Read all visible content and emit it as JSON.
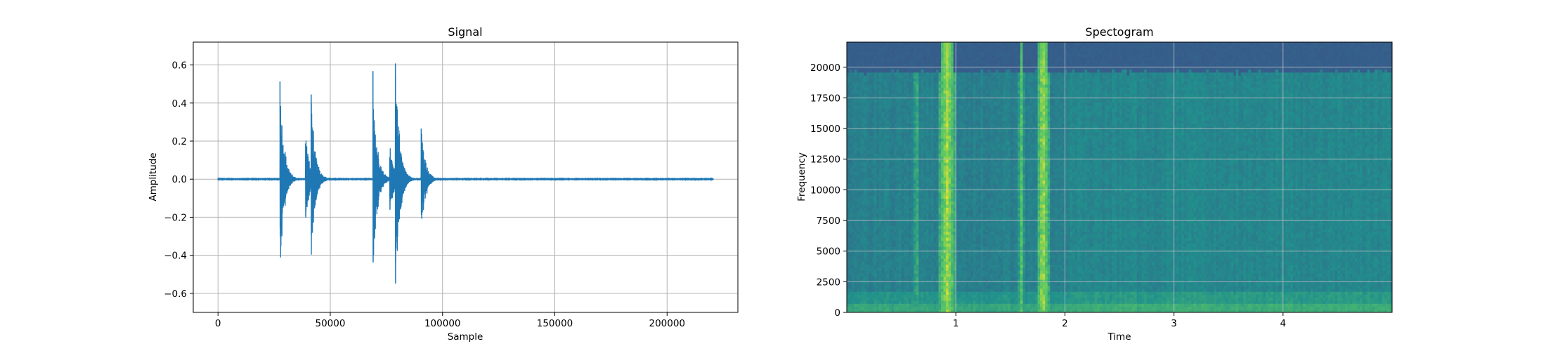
{
  "chart_data": [
    {
      "type": "line",
      "title": "Signal",
      "xlabel": "Sample",
      "ylabel": "Amplitude",
      "xlim": [
        -11025,
        231525
      ],
      "ylim": [
        -0.7,
        0.72
      ],
      "xticks": [
        0,
        50000,
        100000,
        150000,
        200000
      ],
      "yticks": [
        -0.6,
        -0.4,
        -0.2,
        0.0,
        0.2,
        0.4,
        0.6
      ],
      "xtick_labels": [
        "0",
        "50000",
        "100000",
        "150000",
        "200000"
      ],
      "ytick_labels": [
        "−0.6",
        "−0.4",
        "−0.2",
        "0.0",
        "0.2",
        "0.4",
        "0.6"
      ],
      "grid": true,
      "series_color": "#1f77b4",
      "events": [
        {
          "x": 27600,
          "peak": 0.54,
          "trough": -0.52
        },
        {
          "x": 39000,
          "peak": 0.25,
          "trough": -0.28
        },
        {
          "x": 41500,
          "peak": 0.46,
          "trough": -0.36
        },
        {
          "x": 69000,
          "peak": 0.57,
          "trough": -0.55
        },
        {
          "x": 71000,
          "peak": 0.12,
          "trough": -0.16
        },
        {
          "x": 76500,
          "peak": 0.17,
          "trough": -0.2
        },
        {
          "x": 79000,
          "peak": 0.66,
          "trough": -0.64
        },
        {
          "x": 80500,
          "peak": 0.23,
          "trough": -0.3
        },
        {
          "x": 90500,
          "peak": 0.31,
          "trough": -0.32
        }
      ],
      "x_end": 220500
    },
    {
      "type": "heatmap",
      "title": "Spectogram",
      "xlabel": "Time",
      "ylabel": "Frequency",
      "xlim": [
        0.0,
        5.0
      ],
      "ylim": [
        0,
        22050
      ],
      "xticks": [
        1,
        2,
        3,
        4
      ],
      "yticks": [
        0,
        2500,
        5000,
        7500,
        10000,
        12500,
        15000,
        17500,
        20000
      ],
      "xtick_labels": [
        "1",
        "2",
        "3",
        "4"
      ],
      "ytick_labels": [
        "0",
        "2500",
        "5000",
        "7500",
        "10000",
        "12500",
        "15000",
        "17500",
        "20000"
      ],
      "grid": true,
      "colormap": "viridis",
      "cutoff_frequency": 19500,
      "bright_bands": [
        {
          "t": 0.64,
          "width": 0.03,
          "intensity": 0.72
        },
        {
          "t": 0.92,
          "width": 0.08,
          "intensity": 0.95
        },
        {
          "t": 1.6,
          "width": 0.03,
          "intensity": 0.8
        },
        {
          "t": 1.8,
          "width": 0.06,
          "intensity": 0.95
        },
        {
          "t": 2.05,
          "width": 0.03,
          "intensity": 0.55
        }
      ]
    }
  ]
}
